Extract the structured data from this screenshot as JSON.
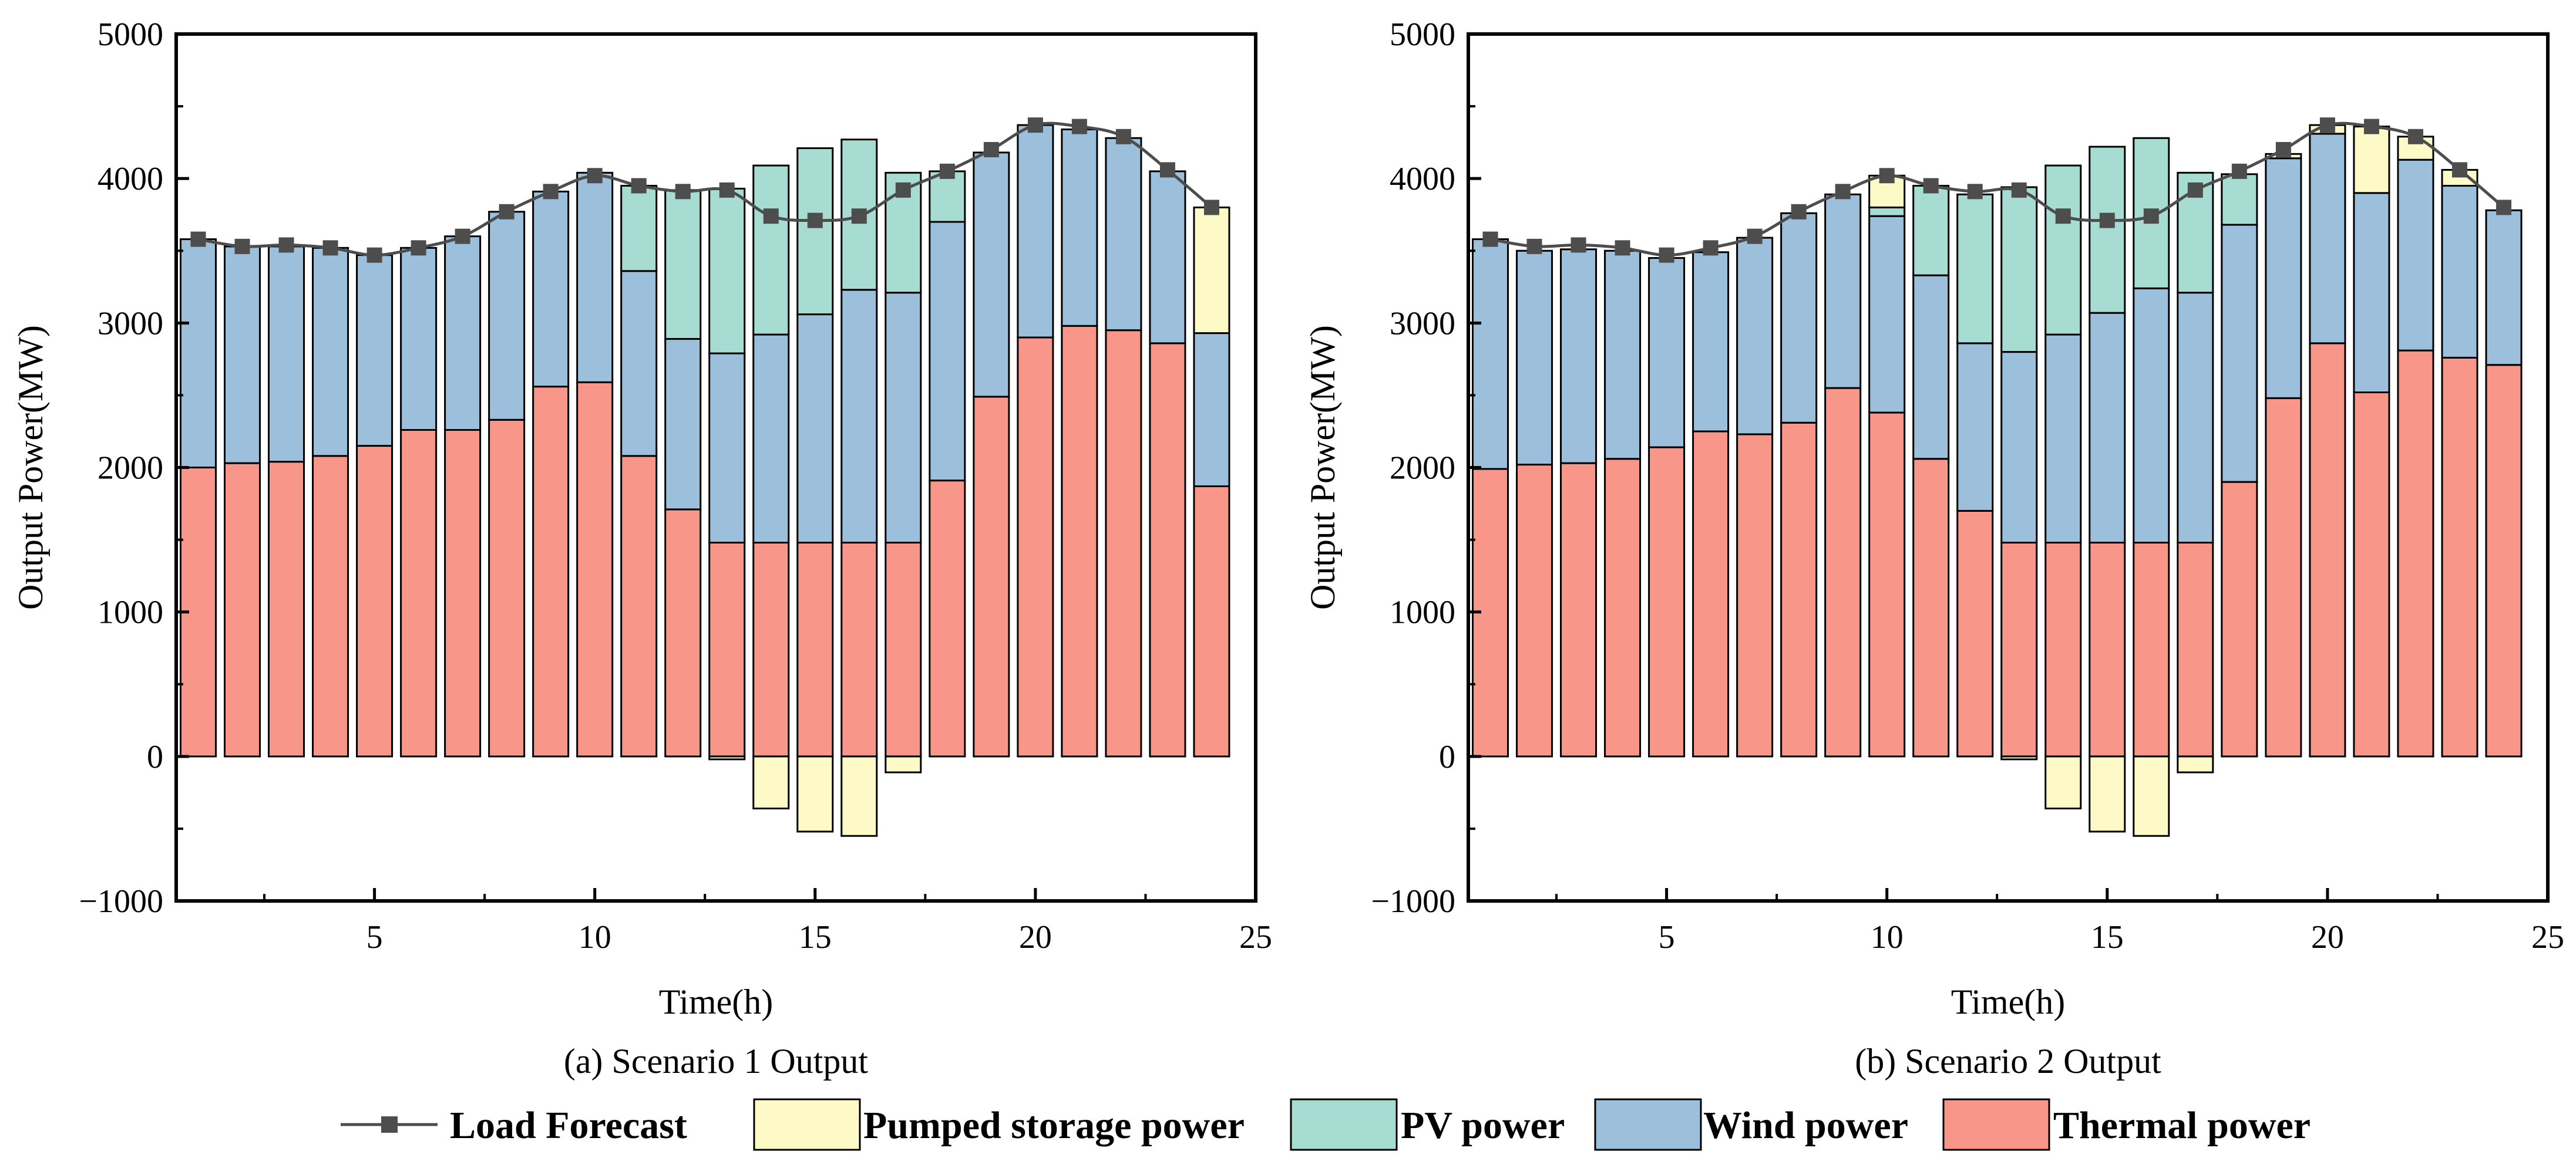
{
  "colors": {
    "thermal": "#F8968A",
    "wind": "#9CC0DC",
    "pv": "#A6DCD1",
    "pumped": "#FDFAC8",
    "load_line": "#4D4D4D",
    "bar_edge": "#000000"
  },
  "legend": {
    "position": "bottom-center",
    "items": [
      {
        "key": "load",
        "label": "Load Forecast"
      },
      {
        "key": "pumped",
        "label": "Pumped storage power"
      },
      {
        "key": "pv",
        "label": "PV power"
      },
      {
        "key": "wind",
        "label": "Wind power"
      },
      {
        "key": "thermal",
        "label": "Thermal power"
      }
    ]
  },
  "chart_data": [
    {
      "type": "bar",
      "stacked": true,
      "caption": "(a) Scenario 1 Output",
      "xlabel": "Time(h)",
      "ylabel": "Output Power(MW)",
      "xlim": [
        0.5,
        25
      ],
      "ylim": [
        -1000,
        5000
      ],
      "xticks": [
        5,
        10,
        15,
        20,
        25
      ],
      "yticks": [
        -1000,
        0,
        1000,
        2000,
        3000,
        4000,
        5000
      ],
      "grid": false,
      "x": [
        1,
        2,
        3,
        4,
        5,
        6,
        7,
        8,
        9,
        10,
        11,
        12,
        13,
        14,
        15,
        16,
        17,
        18,
        19,
        20,
        21,
        22,
        23,
        24
      ],
      "series": [
        {
          "name": "Thermal power",
          "key": "thermal",
          "values": [
            2000,
            2030,
            2040,
            2080,
            2150,
            2260,
            2260,
            2330,
            2560,
            2590,
            2080,
            1710,
            1480,
            1480,
            1480,
            1480,
            1480,
            1910,
            2490,
            2900,
            2980,
            2950,
            2860,
            1870
          ]
        },
        {
          "name": "Wind power",
          "key": "wind",
          "values": [
            1580,
            1500,
            1490,
            1440,
            1320,
            1260,
            1340,
            1440,
            1350,
            1450,
            1280,
            1180,
            1310,
            1440,
            1580,
            1750,
            1730,
            1790,
            1690,
            1470,
            1360,
            1330,
            1190,
            1060
          ]
        },
        {
          "name": "PV power",
          "key": "pv",
          "values": [
            0,
            0,
            0,
            0,
            0,
            0,
            0,
            0,
            0,
            0,
            590,
            1030,
            1140,
            1170,
            1150,
            1040,
            830,
            350,
            0,
            0,
            0,
            0,
            0,
            0
          ]
        },
        {
          "name": "Pumped storage power",
          "key": "pumped",
          "values": [
            0,
            0,
            0,
            0,
            0,
            0,
            0,
            0,
            0,
            0,
            0,
            0,
            -20,
            -360,
            -520,
            -550,
            -110,
            0,
            0,
            0,
            0,
            0,
            0,
            870
          ]
        }
      ],
      "line": {
        "name": "Load Forecast",
        "values": [
          3580,
          3530,
          3540,
          3520,
          3470,
          3520,
          3600,
          3770,
          3910,
          4020,
          3950,
          3910,
          3920,
          3740,
          3710,
          3740,
          3920,
          4050,
          4200,
          4370,
          4360,
          4290,
          4060,
          3800
        ]
      }
    },
    {
      "type": "bar",
      "stacked": true,
      "caption": "(b) Scenario 2 Output",
      "xlabel": "Time(h)",
      "ylabel": "Output Power(MW)",
      "xlim": [
        0.5,
        25
      ],
      "ylim": [
        -1000,
        5000
      ],
      "xticks": [
        5,
        10,
        15,
        20,
        25
      ],
      "yticks": [
        -1000,
        0,
        1000,
        2000,
        3000,
        4000,
        5000
      ],
      "grid": false,
      "x": [
        1,
        2,
        3,
        4,
        5,
        6,
        7,
        8,
        9,
        10,
        11,
        12,
        13,
        14,
        15,
        16,
        17,
        18,
        19,
        20,
        21,
        22,
        23,
        24
      ],
      "series": [
        {
          "name": "Thermal power",
          "key": "thermal",
          "values": [
            1990,
            2020,
            2030,
            2060,
            2140,
            2250,
            2230,
            2310,
            2550,
            2380,
            2060,
            1700,
            1480,
            1480,
            1480,
            1480,
            1480,
            1900,
            2480,
            2860,
            2520,
            2810,
            2760,
            2710
          ]
        },
        {
          "name": "Wind power",
          "key": "wind",
          "values": [
            1590,
            1480,
            1480,
            1440,
            1310,
            1240,
            1360,
            1450,
            1340,
            1360,
            1270,
            1160,
            1320,
            1440,
            1590,
            1760,
            1730,
            1780,
            1660,
            1450,
            1380,
            1320,
            1190,
            1070
          ]
        },
        {
          "name": "PV power",
          "key": "pv",
          "values": [
            0,
            0,
            0,
            0,
            0,
            0,
            0,
            0,
            0,
            60,
            620,
            1030,
            1140,
            1170,
            1150,
            1040,
            830,
            350,
            0,
            0,
            0,
            0,
            0,
            0
          ]
        },
        {
          "name": "Pumped storage power",
          "key": "pumped",
          "values": [
            0,
            0,
            0,
            0,
            0,
            0,
            0,
            0,
            0,
            220,
            0,
            0,
            -20,
            -360,
            -520,
            -550,
            -110,
            0,
            30,
            60,
            460,
            160,
            110,
            0
          ]
        }
      ],
      "line": {
        "name": "Load Forecast",
        "values": [
          3580,
          3530,
          3540,
          3520,
          3470,
          3520,
          3600,
          3770,
          3910,
          4020,
          3950,
          3910,
          3920,
          3740,
          3710,
          3740,
          3920,
          4050,
          4200,
          4370,
          4360,
          4290,
          4060,
          3800
        ]
      }
    }
  ]
}
